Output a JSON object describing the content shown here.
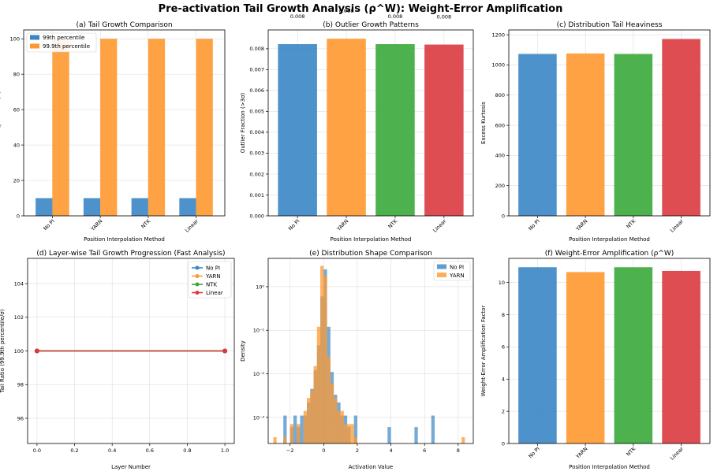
{
  "title": "Pre-activation Tail Growth Analysis (ρ^W): Weight-Error Amplification",
  "colors": {
    "No PI": "#3a86c4",
    "YARN": "#ff9830",
    "NTK": "#3aaa3a",
    "Linear": "#d93a3e",
    "p99": "#3a86c4",
    "p999": "#ff9830"
  },
  "chart_data": [
    {
      "id": "a",
      "type": "bar",
      "title": "(a) Tail Growth Comparison",
      "xlabel": "Position Interpolation Method",
      "ylabel": "Tail Ratio (percentile/σ)",
      "categories": [
        "No PI",
        "YARN",
        "NTK",
        "Linear"
      ],
      "series": [
        {
          "name": "99th percentile",
          "values": [
            10,
            10,
            10,
            10
          ]
        },
        {
          "name": "99.9th percentile",
          "values": [
            100,
            100,
            100,
            100
          ]
        }
      ],
      "ylim": [
        0,
        105
      ],
      "yticks": [
        "0",
        "20",
        "40",
        "60",
        "80",
        "100"
      ],
      "grid": true,
      "legend": "top-left"
    },
    {
      "id": "b",
      "type": "bar",
      "title": "(b) Outlier Growth Patterns",
      "xlabel": "Position Interpolation Method",
      "ylabel": "Outlier Fraction (>3σ)",
      "categories": [
        "No PI",
        "YARN",
        "NTK",
        "Linear"
      ],
      "values": [
        0.00822,
        0.00848,
        0.00822,
        0.0082
      ],
      "data_labels": [
        "0.008",
        "0.008",
        "0.008",
        "0.008"
      ],
      "ylim": [
        0,
        0.0089
      ],
      "yticks": [
        "0.000",
        "0.001",
        "0.002",
        "0.003",
        "0.004",
        "0.005",
        "0.006",
        "0.007",
        "0.008"
      ],
      "grid": true
    },
    {
      "id": "c",
      "type": "bar",
      "title": "(c) Distribution Tail Heaviness",
      "xlabel": "Position Interpolation Method",
      "ylabel": "Excess Kurtosis",
      "categories": [
        "No PI",
        "YARN",
        "NTK",
        "Linear"
      ],
      "values": [
        1073,
        1076,
        1073,
        1172
      ],
      "ylim": [
        0,
        1232
      ],
      "yticks": [
        "0",
        "200",
        "400",
        "600",
        "800",
        "1000",
        "1200"
      ],
      "grid": true
    },
    {
      "id": "d",
      "type": "line",
      "title": "(d) Layer-wise Tail Growth Progression (Fast Analysis)",
      "xlabel": "Layer Number",
      "ylabel": "Tail Ratio (99.9th percentile/σ)",
      "x": [
        0,
        1
      ],
      "series": [
        {
          "name": "No PI",
          "values": [
            100,
            100
          ]
        },
        {
          "name": "YARN",
          "values": [
            100,
            100
          ]
        },
        {
          "name": "NTK",
          "values": [
            100,
            100
          ]
        },
        {
          "name": "Linear",
          "values": [
            100,
            100
          ]
        }
      ],
      "xlim": [
        -0.05,
        1.05
      ],
      "ylim": [
        94.5,
        105.5
      ],
      "xticks": [
        "0.0",
        "0.2",
        "0.4",
        "0.6",
        "0.8",
        "1.0"
      ],
      "yticks": [
        "96",
        "98",
        "100",
        "102",
        "104"
      ],
      "grid": true,
      "legend": "top-right"
    },
    {
      "id": "e",
      "type": "histogram",
      "title": "(e) Distribution Shape Comparison",
      "xlabel": "Activation Value",
      "ylabel": "Density",
      "yscale": "log",
      "bin_width": 0.2,
      "series": [
        {
          "name": "No PI",
          "bins": [
            [
              -2.3,
              0.0011
            ],
            [
              -1.9,
              0.0006
            ],
            [
              -1.7,
              0.0011
            ],
            [
              -1.5,
              0.0006
            ],
            [
              -1.3,
              0.0011
            ],
            [
              -1.1,
              0.0011
            ],
            [
              -0.9,
              0.0022
            ],
            [
              -0.7,
              0.0045
            ],
            [
              -0.5,
              0.012
            ],
            [
              -0.3,
              0.045
            ],
            [
              -0.1,
              0.6
            ],
            [
              0.1,
              2.5
            ],
            [
              0.3,
              0.12
            ],
            [
              0.5,
              0.011
            ],
            [
              0.7,
              0.0033
            ],
            [
              0.9,
              0.0022
            ],
            [
              1.1,
              0.0011
            ],
            [
              1.3,
              0.0011
            ],
            [
              1.5,
              0.0006
            ],
            [
              1.9,
              0.0011
            ],
            [
              3.9,
              0.0006
            ],
            [
              5.5,
              0.0006
            ],
            [
              6.5,
              0.0011
            ]
          ]
        },
        {
          "name": "YARN",
          "bins": [
            [
              -2.9,
              0.00035
            ],
            [
              -2.3,
              0.00035
            ],
            [
              -1.9,
              0.0007
            ],
            [
              -1.5,
              0.0007
            ],
            [
              -1.1,
              0.0014
            ],
            [
              -0.9,
              0.0028
            ],
            [
              -0.7,
              0.0042
            ],
            [
              -0.5,
              0.015
            ],
            [
              -0.3,
              0.12
            ],
            [
              -0.1,
              3.0
            ],
            [
              0.1,
              1.8
            ],
            [
              0.3,
              0.025
            ],
            [
              0.5,
              0.006
            ],
            [
              0.7,
              0.0028
            ],
            [
              0.9,
              0.0014
            ],
            [
              1.1,
              0.0014
            ],
            [
              1.3,
              0.0007
            ],
            [
              1.5,
              0.0007
            ],
            [
              1.7,
              0.0007
            ],
            [
              1.9,
              0.00035
            ],
            [
              8.3,
              0.00035
            ]
          ]
        }
      ],
      "xlim": [
        -3.3,
        8.9
      ],
      "ylim_log": [
        -3.6,
        0.65
      ],
      "xticks": [
        {
          "v": -2,
          "label": "−2"
        },
        {
          "v": 0,
          "label": "0"
        },
        {
          "v": 2,
          "label": "2"
        },
        {
          "v": 4,
          "label": "4"
        },
        {
          "v": 6,
          "label": "6"
        },
        {
          "v": 8,
          "label": "8"
        }
      ],
      "yticks": [
        {
          "e": -3,
          "label": "10⁻³"
        },
        {
          "e": -2,
          "label": "10⁻²"
        },
        {
          "e": -1,
          "label": "10⁻¹"
        },
        {
          "e": 0,
          "label": "10⁰"
        }
      ],
      "grid": true,
      "legend": "top-right"
    },
    {
      "id": "f",
      "type": "bar",
      "title": "(f) Weight-Error Amplification (ρ^W)",
      "xlabel": "Position Interpolation Method",
      "ylabel": "Weight-Error Amplification Factor",
      "categories": [
        "No PI",
        "YARN",
        "NTK",
        "Linear"
      ],
      "values": [
        10.95,
        10.65,
        10.95,
        10.72
      ],
      "ylim": [
        0,
        11.5
      ],
      "yticks": [
        "0",
        "2",
        "4",
        "6",
        "8",
        "10"
      ],
      "grid": true
    }
  ]
}
